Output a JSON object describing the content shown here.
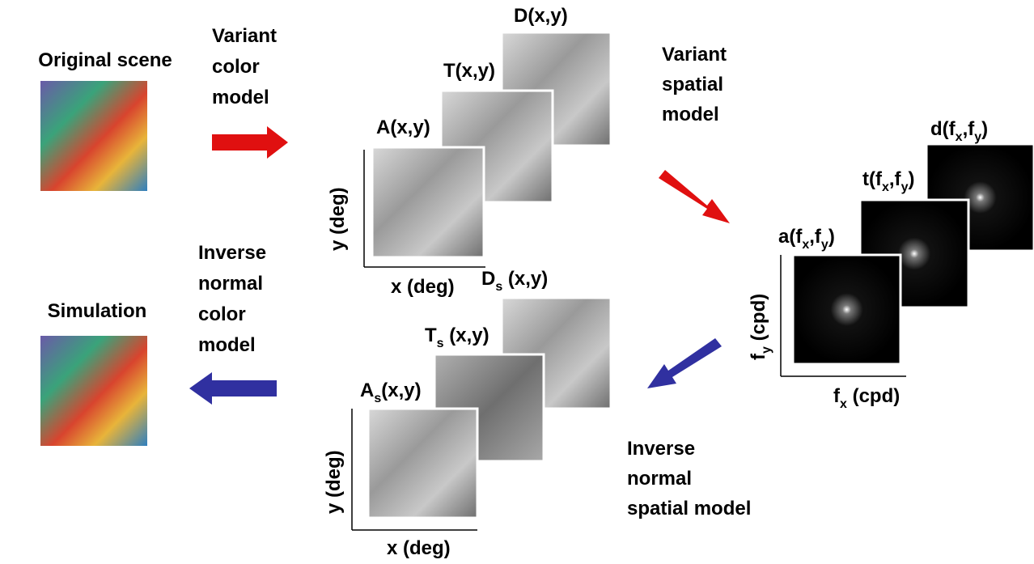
{
  "scene": {
    "original": "Original scene",
    "simulation": "Simulation"
  },
  "steps": {
    "variant_color": [
      "Variant",
      "color",
      "model"
    ],
    "variant_spatial": [
      "Variant",
      "spatial",
      "model"
    ],
    "inverse_spatial": [
      "Inverse",
      "normal",
      "spatial model"
    ],
    "inverse_color": [
      "Inverse",
      "normal",
      "color",
      "model"
    ]
  },
  "variant_images": [
    [
      "D(x,y)"
    ],
    [
      "T(x,y)"
    ],
    [
      "A(x,y)"
    ]
  ],
  "spectra": [
    [
      "d(f",
      "x",
      ",f",
      "y",
      ")"
    ],
    [
      "t(f",
      "x",
      ",f",
      "y",
      ")"
    ],
    [
      "a(f",
      "x",
      ",f",
      "y",
      ")"
    ]
  ],
  "simulated_images": [
    [
      "D",
      "s",
      " (x,y)"
    ],
    [
      "T",
      "s",
      " (x,y)"
    ],
    [
      "A",
      "s",
      "(x,y)"
    ]
  ],
  "axes": {
    "top_y": [
      "y (deg)"
    ],
    "top_x": [
      "x (deg)"
    ],
    "freq_y": [
      "f",
      "y",
      " (cpd)"
    ],
    "freq_x": [
      "f",
      "x",
      " (cpd)"
    ],
    "bottom_y": [
      "y (deg)"
    ],
    "bottom_x": [
      "x (deg)"
    ]
  }
}
